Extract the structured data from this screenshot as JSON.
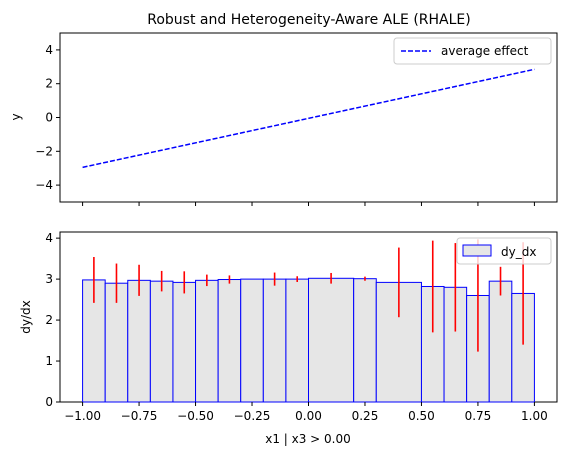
{
  "title": "Robust and Heterogeneity-Aware ALE (RHALE)",
  "colors": {
    "line": "#0000ff",
    "bar_fill": "#e6e6e6",
    "bar_edge": "#0000ff",
    "error": "#ff0000"
  },
  "chart_data": [
    {
      "type": "line",
      "title": "Robust and Heterogeneity-Aware ALE (RHALE)",
      "ylabel": "y",
      "xlabel": "",
      "xlim": [
        -1.1,
        1.1
      ],
      "ylim": [
        -5,
        5
      ],
      "yticks": [
        -4,
        -2,
        0,
        2,
        4
      ],
      "xticks": [
        -1.0,
        -0.75,
        -0.5,
        -0.25,
        0.0,
        0.25,
        0.5,
        0.75,
        1.0
      ],
      "legend": "upper right",
      "series": [
        {
          "name": "average effect",
          "style": "dashed",
          "x": [
            -1.0,
            1.0
          ],
          "y": [
            -2.95,
            2.85
          ]
        }
      ]
    },
    {
      "type": "bar",
      "xlabel": "x1 | x3 > 0.00",
      "ylabel": "dy/dx",
      "xlim": [
        -1.1,
        1.1
      ],
      "ylim": [
        0,
        4.15
      ],
      "yticks": [
        0,
        1,
        2,
        3,
        4
      ],
      "xticks": [
        -1.0,
        -0.75,
        -0.5,
        -0.25,
        0.0,
        0.25,
        0.5,
        0.75,
        1.0
      ],
      "xtick_labels": [
        "−1.00",
        "−0.75",
        "−0.50",
        "−0.25",
        "0.00",
        "0.25",
        "0.50",
        "0.75",
        "1.00"
      ],
      "legend": "upper right",
      "series_name": "dy_dx",
      "bins": [
        {
          "left": -1.0,
          "right": -0.9,
          "value": 2.98,
          "err": 0.56
        },
        {
          "left": -0.9,
          "right": -0.8,
          "value": 2.9,
          "err": 0.48
        },
        {
          "left": -0.8,
          "right": -0.7,
          "value": 2.97,
          "err": 0.38
        },
        {
          "left": -0.7,
          "right": -0.6,
          "value": 2.95,
          "err": 0.25
        },
        {
          "left": -0.6,
          "right": -0.5,
          "value": 2.92,
          "err": 0.27
        },
        {
          "left": -0.5,
          "right": -0.4,
          "value": 2.97,
          "err": 0.14
        },
        {
          "left": -0.4,
          "right": -0.3,
          "value": 2.99,
          "err": 0.1
        },
        {
          "left": -0.3,
          "right": -0.2,
          "value": 3.0,
          "err": 0.0
        },
        {
          "left": -0.2,
          "right": -0.1,
          "value": 3.0,
          "err": 0.16
        },
        {
          "left": -0.1,
          "right": 0.0,
          "value": 3.0,
          "err": 0.07
        },
        {
          "left": 0.0,
          "right": 0.2,
          "value": 3.02,
          "err": 0.13
        },
        {
          "left": 0.2,
          "right": 0.3,
          "value": 3.01,
          "err": 0.05
        },
        {
          "left": 0.3,
          "right": 0.5,
          "value": 2.92,
          "err": 0.85
        },
        {
          "left": 0.5,
          "right": 0.6,
          "value": 2.82,
          "err": 1.12
        },
        {
          "left": 0.6,
          "right": 0.7,
          "value": 2.8,
          "err": 1.08
        },
        {
          "left": 0.7,
          "right": 0.8,
          "value": 2.6,
          "err": 1.37
        },
        {
          "left": 0.8,
          "right": 0.9,
          "value": 2.95,
          "err": 0.35
        },
        {
          "left": 0.9,
          "right": 1.0,
          "value": 2.65,
          "err": 1.25
        }
      ]
    }
  ]
}
